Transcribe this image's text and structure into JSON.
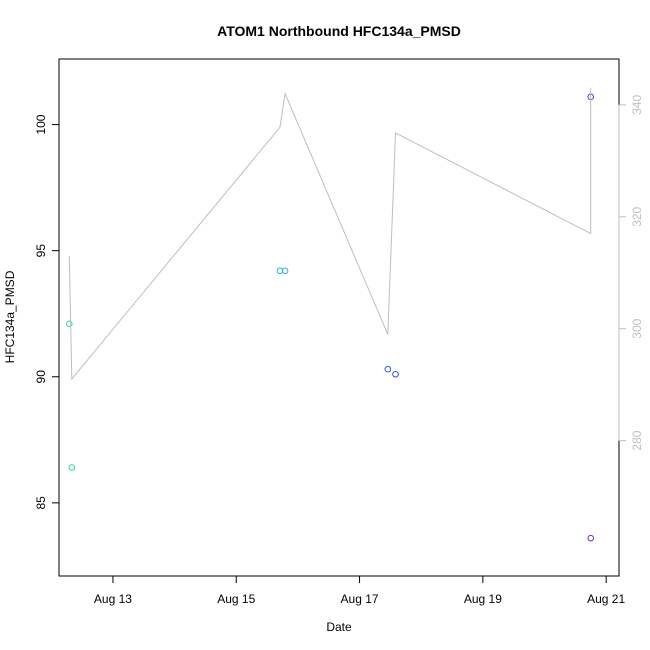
{
  "chart_data": {
    "type": "scatter",
    "title": "ATOM1 Northbound HFC134a_PMSD",
    "xlabel": "Date",
    "ylabel": "HFC134a_PMSD",
    "y2label": "",
    "x_ticks": [
      "Aug 13",
      "Aug 15",
      "Aug 17",
      "Aug 19",
      "Aug 21"
    ],
    "x_tick_values": [
      "2016-08-13",
      "2016-08-15",
      "2016-08-17",
      "2016-08-19",
      "2016-08-21"
    ],
    "xlim": [
      "2016-08-12T03:00",
      "2016-08-21T05:00"
    ],
    "ylim": [
      82.1,
      102.6
    ],
    "y_ticks": [
      85,
      90,
      95,
      100
    ],
    "y2lim": [
      255.8,
      348.2
    ],
    "y2_ticks": [
      280,
      300,
      320,
      340
    ],
    "grid": false,
    "colors": {
      "axis": "#000000",
      "secondary_axis": "#c0c0c0",
      "line": "#bebebe"
    },
    "series": [
      {
        "axis": "left",
        "style": "points",
        "points": [
          {
            "x": "2016-08-12T07:00",
            "y": 92.1,
            "color": "#22e3a0"
          },
          {
            "x": "2016-08-12T08:00",
            "y": 86.4,
            "color": "#22e3a0"
          },
          {
            "x": "2016-08-15T17:00",
            "y": 94.2,
            "color": "#21b4e3"
          },
          {
            "x": "2016-08-15T19:00",
            "y": 94.2,
            "color": "#21b4e3"
          },
          {
            "x": "2016-08-17T11:00",
            "y": 90.3,
            "color": "#2a55e8"
          },
          {
            "x": "2016-08-17T14:00",
            "y": 90.1,
            "color": "#2a55e8"
          },
          {
            "x": "2016-08-20T18:00",
            "y": 101.1,
            "color": "#6a2de3"
          },
          {
            "x": "2016-08-20T18:00",
            "y": 83.6,
            "color": "#6a2de3"
          }
        ]
      },
      {
        "axis": "right",
        "style": "line",
        "points": [
          {
            "x": "2016-08-12T07:00",
            "y": 313
          },
          {
            "x": "2016-08-12T08:00",
            "y": 291
          },
          {
            "x": "2016-08-15T17:00",
            "y": 336
          },
          {
            "x": "2016-08-15T19:00",
            "y": 342
          },
          {
            "x": "2016-08-17T11:00",
            "y": 299
          },
          {
            "x": "2016-08-17T14:00",
            "y": 335
          },
          {
            "x": "2016-08-20T18:00",
            "y": 317
          },
          {
            "x": "2016-08-20T18:00",
            "y": 343
          }
        ]
      }
    ]
  }
}
